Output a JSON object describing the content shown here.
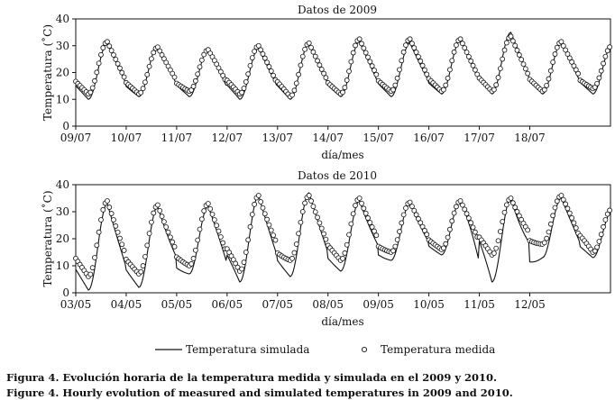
{
  "chart_data": [
    {
      "type": "line",
      "title": "Datos de 2009",
      "xlabel": "día/mes",
      "ylabel": "Temperatura (˚C)",
      "ylim": [
        0,
        40
      ],
      "yticks": [
        0,
        10,
        20,
        30,
        40
      ],
      "xticks": [
        "09/07",
        "10/07",
        "11/07",
        "12/07",
        "13/07",
        "14/07",
        "15/07",
        "16/07",
        "17/07",
        "18/07"
      ],
      "x_unit": "days since 09/07",
      "xlim": [
        0,
        10.6
      ],
      "series": [
        {
          "name": "Temperatura simulada",
          "style": "line",
          "days": [
            {
              "min": 10,
              "max": 31
            },
            {
              "min": 11,
              "max": 30
            },
            {
              "min": 11,
              "max": 28.5
            },
            {
              "min": 10,
              "max": 29
            },
            {
              "min": 10,
              "max": 31
            },
            {
              "min": 11,
              "max": 31.5
            },
            {
              "min": 11,
              "max": 31
            },
            {
              "min": 12,
              "max": 32
            },
            {
              "min": 12,
              "max": 35
            },
            {
              "min": 12,
              "max": 31
            },
            {
              "min": 12,
              "max": 30
            }
          ]
        },
        {
          "name": "Temperatura medida",
          "style": "markers",
          "days": [
            {
              "min": 12,
              "max": 31.5
            },
            {
              "min": 12,
              "max": 29.5
            },
            {
              "min": 13,
              "max": 28.5
            },
            {
              "min": 12,
              "max": 30
            },
            {
              "min": 11,
              "max": 31
            },
            {
              "min": 12,
              "max": 32.5
            },
            {
              "min": 13,
              "max": 32.5
            },
            {
              "min": 13,
              "max": 32.5
            },
            {
              "min": 13,
              "max": 33.5
            },
            {
              "min": 13,
              "max": 31.5
            },
            {
              "min": 14,
              "max": 30
            }
          ]
        }
      ]
    },
    {
      "type": "line",
      "title": "Datos de 2010",
      "xlabel": "día/mes",
      "ylabel": "Temperatura (˚C)",
      "ylim": [
        0,
        40
      ],
      "yticks": [
        0,
        10,
        20,
        30,
        40
      ],
      "xticks": [
        "03/05",
        "04/05",
        "05/05",
        "06/05",
        "07/05",
        "08/05",
        "09/05",
        "10/05",
        "11/05",
        "12/05"
      ],
      "x_unit": "days since 03/05",
      "xlim": [
        0,
        10.6
      ],
      "series": [
        {
          "name": "Temperatura simulada",
          "style": "line",
          "days": [
            {
              "min": 1,
              "max": 33
            },
            {
              "min": 2,
              "max": 32
            },
            {
              "min": 7,
              "max": 32
            },
            {
              "min": 4,
              "max": 36
            },
            {
              "min": 6,
              "max": 37
            },
            {
              "min": 8,
              "max": 34
            },
            {
              "min": 12,
              "max": 33
            },
            {
              "min": 14,
              "max": 34
            },
            {
              "min": 4,
              "max": 35
            },
            {
              "min": 13,
              "max": 35
            },
            {
              "min": 13,
              "max": 30
            }
          ]
        },
        {
          "name": "Temperatura medida",
          "style": "markers",
          "days": [
            {
              "min": 6,
              "max": 34
            },
            {
              "min": 7,
              "max": 32.5
            },
            {
              "min": 10,
              "max": 33
            },
            {
              "min": 8,
              "max": 36
            },
            {
              "min": 12,
              "max": 36
            },
            {
              "min": 12,
              "max": 35
            },
            {
              "min": 15,
              "max": 33.5
            },
            {
              "min": 16,
              "max": 34
            },
            {
              "min": 14,
              "max": 35
            },
            {
              "min": 18,
              "max": 36
            },
            {
              "min": 15,
              "max": 31
            }
          ]
        }
      ]
    }
  ],
  "legend": {
    "simulated": "Temperatura simulada",
    "measured": "Temperatura medida",
    "position": "bottom"
  },
  "caption": {
    "es": "Figura 4. Evolución horaria de la temperatura medida y simulada en el 2009 y 2010.",
    "en": "Figure 4. Hourly evolution of measured and simulated temperatures in 2009 and 2010."
  }
}
